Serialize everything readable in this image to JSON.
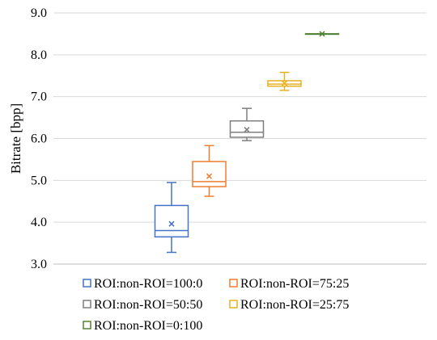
{
  "chart_data": {
    "type": "box",
    "ylabel": "Bitrate [bpp]",
    "xlabel": "",
    "ylim": [
      3.0,
      9.0
    ],
    "yticks": [
      "3.0",
      "4.0",
      "5.0",
      "6.0",
      "7.0",
      "8.0",
      "9.0"
    ],
    "grid": "horizontal",
    "legend_position": "bottom",
    "series": [
      {
        "name": "ROI:non-ROI=100:0",
        "color": "#4472C4",
        "min": 3.28,
        "q1": 3.65,
        "median": 3.8,
        "q3": 4.4,
        "max": 4.95,
        "mean": 3.96
      },
      {
        "name": "ROI:non-ROI=75:25",
        "color": "#ED7D31",
        "min": 4.62,
        "q1": 4.85,
        "median": 4.97,
        "q3": 5.45,
        "max": 5.83,
        "mean": 5.1
      },
      {
        "name": "ROI:non-ROI=50:50",
        "color": "#7F7F7F",
        "min": 5.95,
        "q1": 6.03,
        "median": 6.15,
        "q3": 6.42,
        "max": 6.72,
        "mean": 6.21
      },
      {
        "name": "ROI:non-ROI=25:75",
        "color": "#E6B020",
        "min": 7.15,
        "q1": 7.25,
        "median": 7.3,
        "q3": 7.38,
        "max": 7.58,
        "mean": 7.32
      },
      {
        "name": "ROI:non-ROI=0:100",
        "color": "#548235",
        "min": 8.5,
        "q1": 8.5,
        "median": 8.5,
        "q3": 8.5,
        "max": 8.5,
        "mean": 8.5
      }
    ]
  }
}
